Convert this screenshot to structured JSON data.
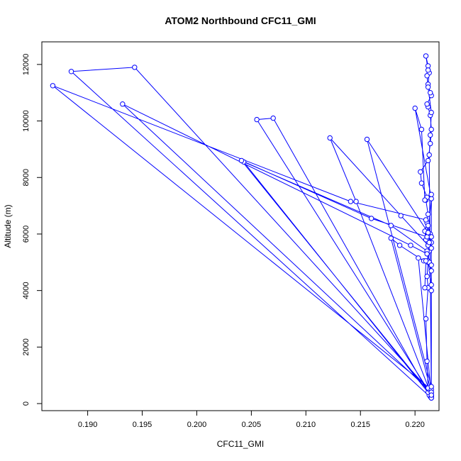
{
  "chart_data": {
    "type": "line",
    "title": "ATOM2 Northbound CFC11_GMI",
    "xlabel": "CFC11_GMI",
    "ylabel": "Altitude (m)",
    "xlim": [
      0.1858,
      0.2222
    ],
    "ylim": [
      -250,
      12800
    ],
    "xticks": [
      0.19,
      0.195,
      0.2,
      0.205,
      0.21,
      0.215,
      0.22
    ],
    "xtick_labels": [
      "0.190",
      "0.195",
      "0.200",
      "0.205",
      "0.210",
      "0.215",
      "0.220"
    ],
    "yticks": [
      0,
      2000,
      4000,
      6000,
      8000,
      10000,
      12000
    ],
    "ytick_labels": [
      "0",
      "2000",
      "4000",
      "6000",
      "8000",
      "10000",
      "12000"
    ],
    "color": "#0000ff",
    "marker": "open-circle",
    "series": [
      {
        "x": [
          0.2215,
          0.2214,
          0.2213,
          0.2212,
          0.2213,
          0.2212,
          0.2211,
          0.221,
          0.2212,
          0.2211,
          0.2212,
          0.2213,
          0.2212,
          0.221,
          0.2209,
          0.2211,
          0.2212,
          0.221,
          0.2211,
          0.2206,
          0.2205,
          0.2212,
          0.2214,
          0.2215,
          0.2214,
          0.2212,
          0.2211,
          0.2215,
          0.2214,
          0.2212,
          0.2213,
          0.2212,
          0.221,
          0.2212,
          0.2211,
          0.2212,
          0.2215,
          0.2214,
          0.2213,
          0.2215,
          0.2146,
          0.2122,
          0.2187,
          0.2212,
          0.2214,
          0.2212,
          0.2215,
          0.2215,
          0.2043,
          0.2178,
          0.2211,
          0.2212,
          0.2215,
          0.2215,
          0.1932,
          0.2196,
          0.2211,
          0.2213,
          0.2215,
          0.2215,
          0.1868,
          0.2141,
          0.221,
          0.2212,
          0.2215,
          0.2215,
          0.2041,
          0.216,
          0.2211,
          0.2213,
          0.2215,
          0.2215,
          0.2055,
          0.207,
          0.2215,
          0.1885,
          0.1943,
          0.2215,
          0.2178,
          0.2186,
          0.2208,
          0.2215,
          0.2215,
          0.2156,
          0.2212,
          0.2215,
          0.22,
          0.2206,
          0.2209,
          0.2215,
          0.2215,
          0.2203,
          0.221,
          0.2209,
          0.2215
        ],
        "y": [
          200,
          250,
          300,
          400,
          500,
          550,
          1500,
          3000,
          4100,
          4500,
          5000,
          5400,
          5600,
          5800,
          6100,
          6400,
          6700,
          7200,
          7300,
          7800,
          8200,
          8600,
          9200,
          9700,
          10200,
          10500,
          10600,
          10900,
          11000,
          11300,
          11700,
          11950,
          12300,
          11800,
          11600,
          11200,
          10300,
          9500,
          8800,
          300,
          7150,
          9400,
          6650,
          5600,
          6000,
          6300,
          5900,
          250,
          8550,
          6300,
          5400,
          5050,
          4200,
          400,
          10600,
          5600,
          5300,
          5000,
          4700,
          500,
          11250,
          7150,
          6500,
          6000,
          5700,
          300,
          8600,
          6550,
          5900,
          5700,
          5500,
          300,
          10050,
          10100,
          200,
          11750,
          11900,
          400,
          5850,
          5600,
          5050,
          4900,
          600,
          9350,
          6050,
          7250,
          10450,
          9700,
          7200,
          7400,
          300,
          5150,
          5050,
          4100,
          4000
        ]
      }
    ]
  }
}
